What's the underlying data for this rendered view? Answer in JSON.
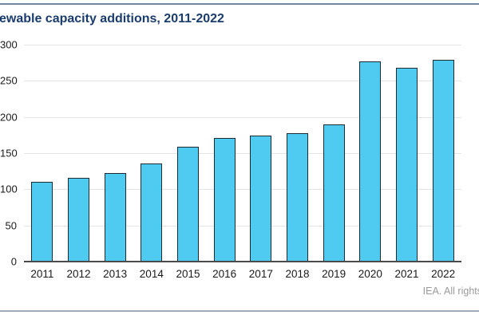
{
  "header": {
    "title_visible": "ewable capacity additions, 2011-2022",
    "title_color": "#1a3c6e"
  },
  "footer": {
    "credit_visible": "IEA. All rights"
  },
  "chart_data": {
    "type": "bar",
    "title": "ewable capacity additions, 2011-2022",
    "categories": [
      "2011",
      "2012",
      "2013",
      "2014",
      "2015",
      "2016",
      "2017",
      "2018",
      "2019",
      "2020",
      "2021",
      "2022"
    ],
    "values": [
      110,
      116,
      122,
      136,
      159,
      171,
      174,
      178,
      190,
      277,
      268,
      279
    ],
    "xlabel": "",
    "ylabel": "",
    "ylim": [
      0,
      300
    ],
    "yticks": [
      0,
      50,
      100,
      150,
      200,
      250,
      300
    ],
    "grid": true,
    "legend": false,
    "bar_color": "#4fcbf1",
    "bar_border_color": "#1c2b33",
    "gridline_color": "#e4e4e4",
    "axis_line_color": "#4a4a4a"
  }
}
